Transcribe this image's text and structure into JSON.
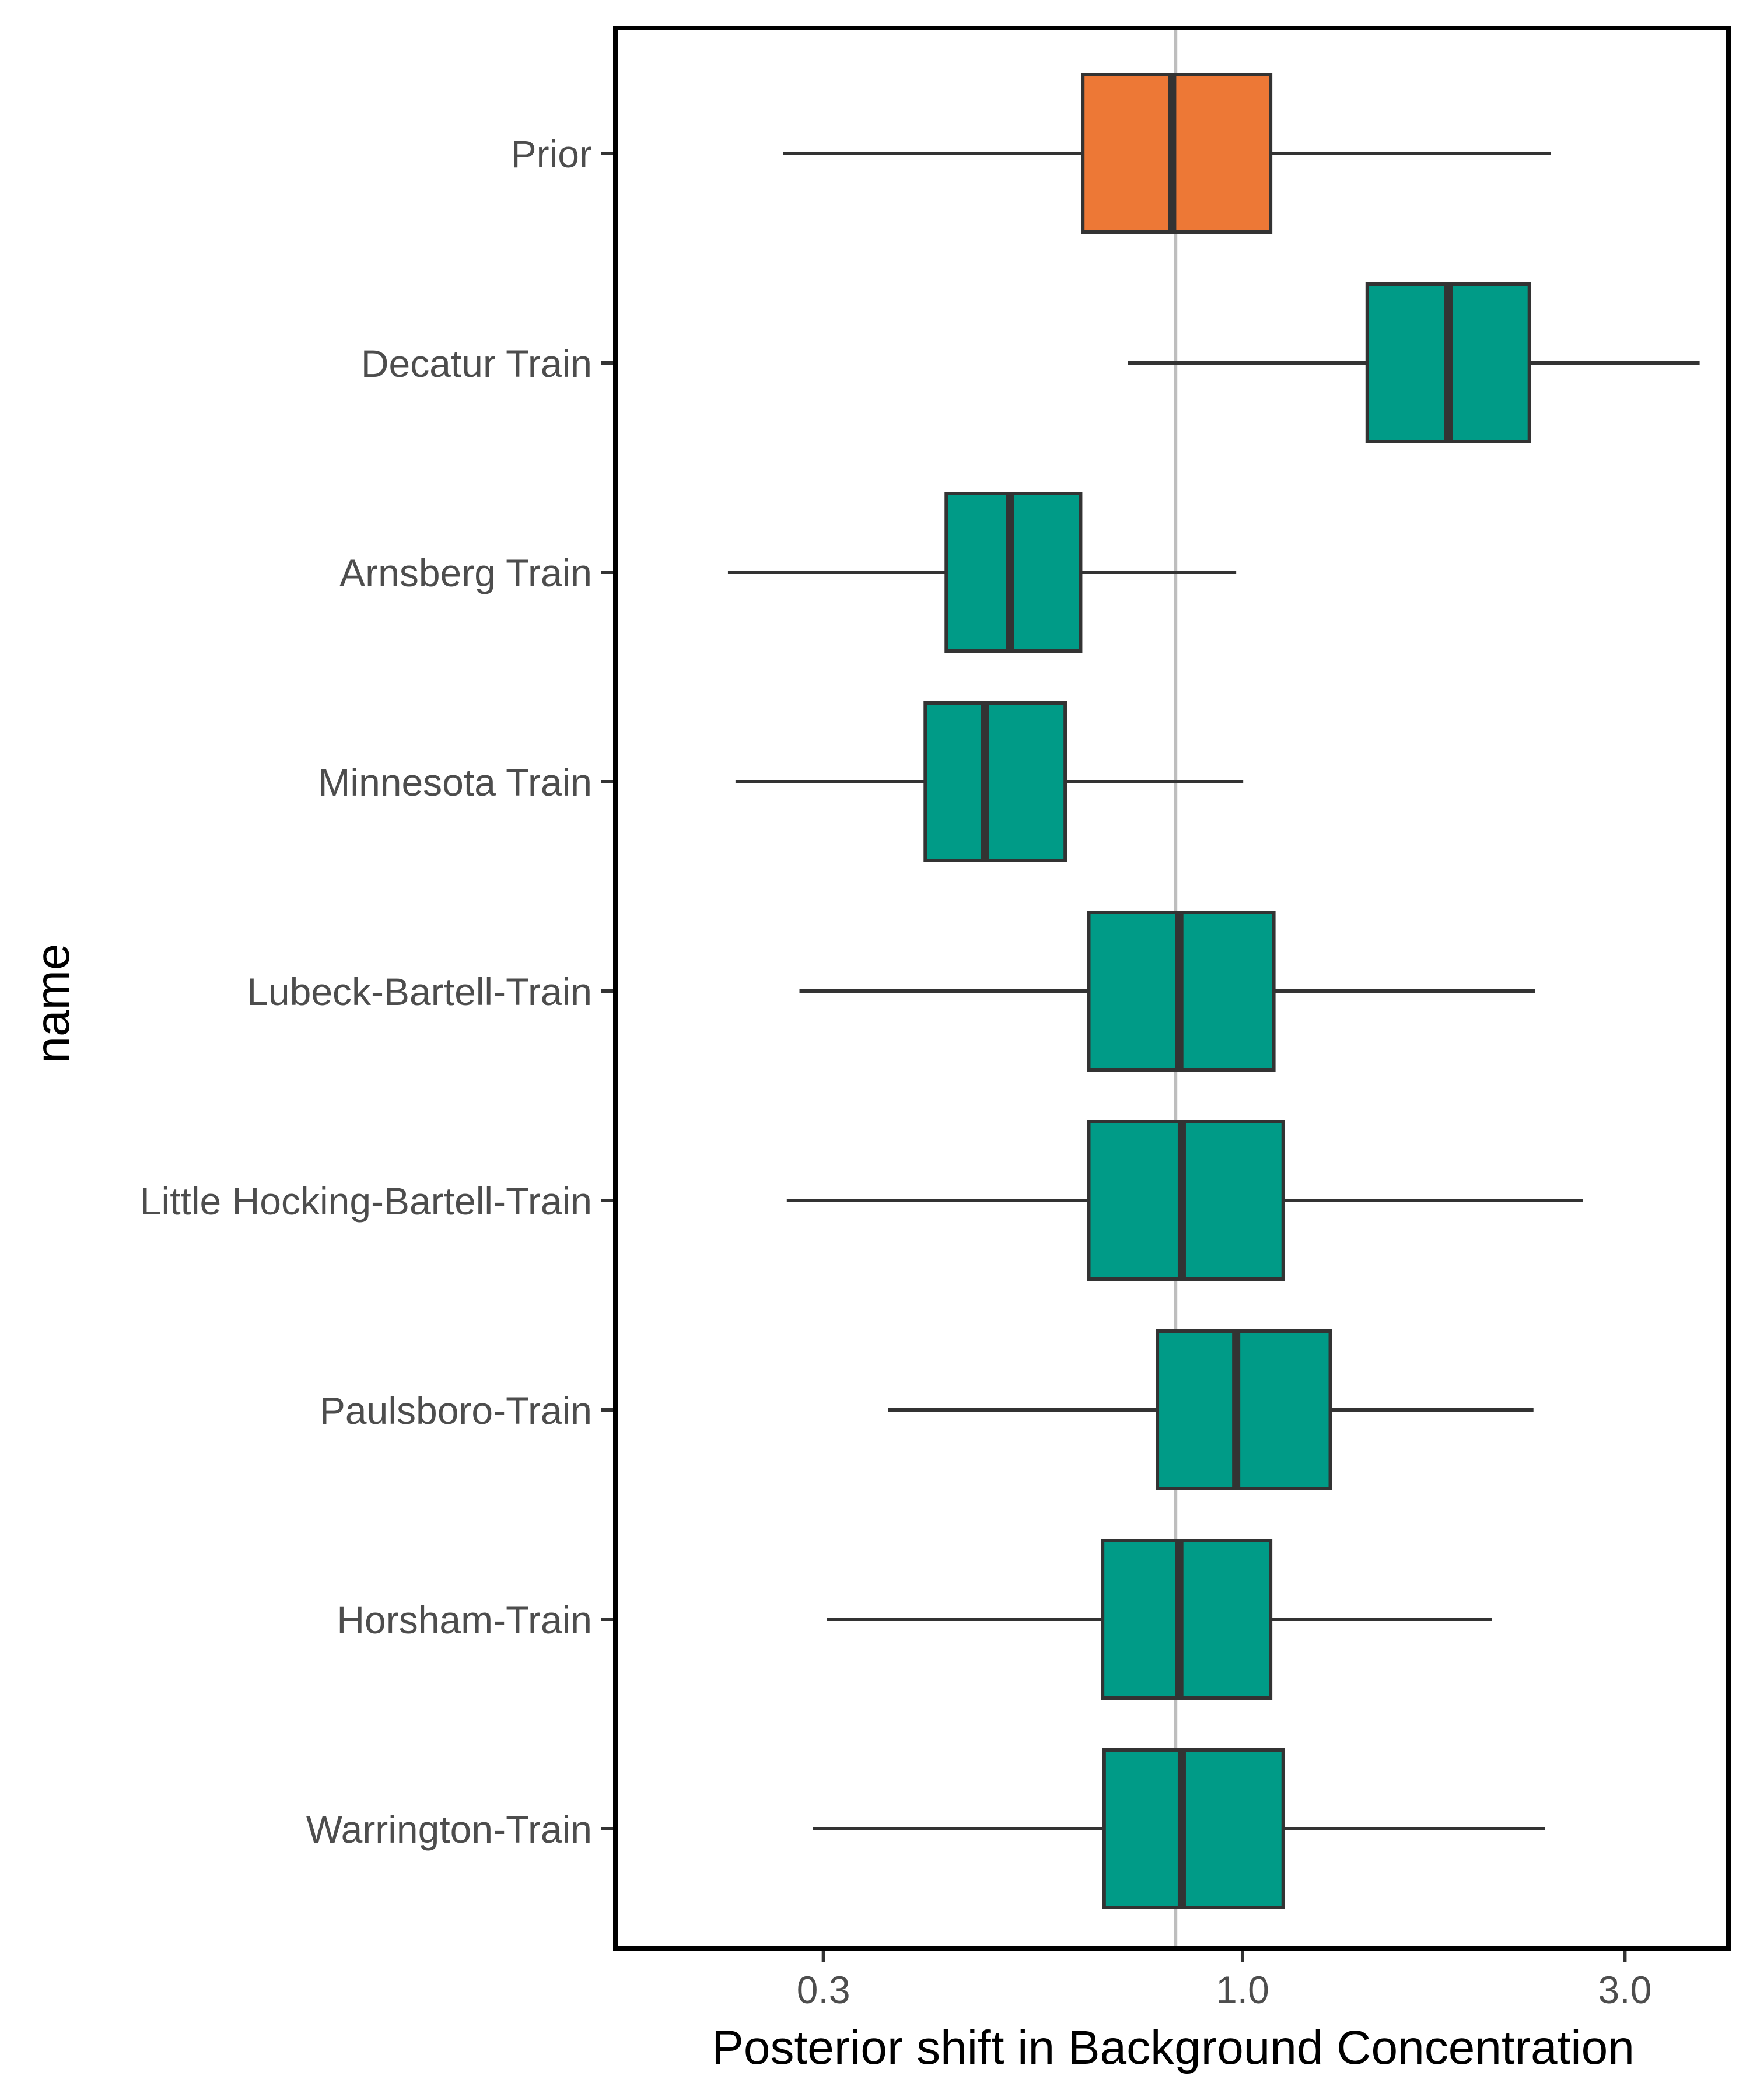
{
  "chart_data": {
    "type": "boxplot",
    "orientation": "horizontal",
    "title": "",
    "xlabel": "Posterior shift in Background Concentration",
    "ylabel": "name",
    "x_scale": "log10",
    "xlim": [
      0.165,
      4.04
    ],
    "x_ticks": [
      0.3,
      1.0,
      3.0
    ],
    "x_tick_labels": [
      "0.3",
      "1.0",
      "3.0"
    ],
    "reference_line": 0.825,
    "grid": false,
    "legend": "none",
    "colors": {
      "prior": "#ED7836",
      "train": "#009B87",
      "outline": "#333333",
      "reference": "#BEBEBE"
    },
    "categories": [
      "Prior",
      "Decatur Train",
      "Arnsberg Train",
      "Minnesota Train",
      "Lubeck-Bartell-Train",
      "Little Hocking-Bartell-Train",
      "Paulsboro-Train",
      "Horsham-Train",
      "Warrington-Train"
    ],
    "boxes": [
      {
        "name": "Prior",
        "group": "prior",
        "whisker_low": 0.267,
        "q1": 0.632,
        "median": 0.817,
        "q3": 1.084,
        "whisker_high": 2.424
      },
      {
        "name": "Decatur Train",
        "group": "train",
        "whisker_low": 0.719,
        "q1": 1.431,
        "median": 1.807,
        "q3": 2.28,
        "whisker_high": 3.719
      },
      {
        "name": "Arnsberg Train",
        "group": "train",
        "whisker_low": 0.228,
        "q1": 0.427,
        "median": 0.513,
        "q3": 0.628,
        "whisker_high": 0.982
      },
      {
        "name": "Minnesota Train",
        "group": "train",
        "whisker_low": 0.233,
        "q1": 0.402,
        "median": 0.477,
        "q3": 0.601,
        "whisker_high": 1.002
      },
      {
        "name": "Lubeck-Bartell-Train",
        "group": "train",
        "whisker_low": 0.28,
        "q1": 0.643,
        "median": 0.834,
        "q3": 1.094,
        "whisker_high": 2.316
      },
      {
        "name": "Little Hocking-Bartell-Train",
        "group": "train",
        "whisker_low": 0.27,
        "q1": 0.643,
        "median": 0.84,
        "q3": 1.124,
        "whisker_high": 2.657
      },
      {
        "name": "Paulsboro-Train",
        "group": "train",
        "whisker_low": 0.361,
        "q1": 0.783,
        "median": 0.982,
        "q3": 1.287,
        "whisker_high": 2.307
      },
      {
        "name": "Horsham-Train",
        "group": "train",
        "whisker_low": 0.303,
        "q1": 0.669,
        "median": 0.834,
        "q3": 1.084,
        "whisker_high": 2.049
      },
      {
        "name": "Warrington-Train",
        "group": "train",
        "whisker_low": 0.291,
        "q1": 0.672,
        "median": 0.84,
        "q3": 1.124,
        "whisker_high": 2.384
      }
    ]
  }
}
